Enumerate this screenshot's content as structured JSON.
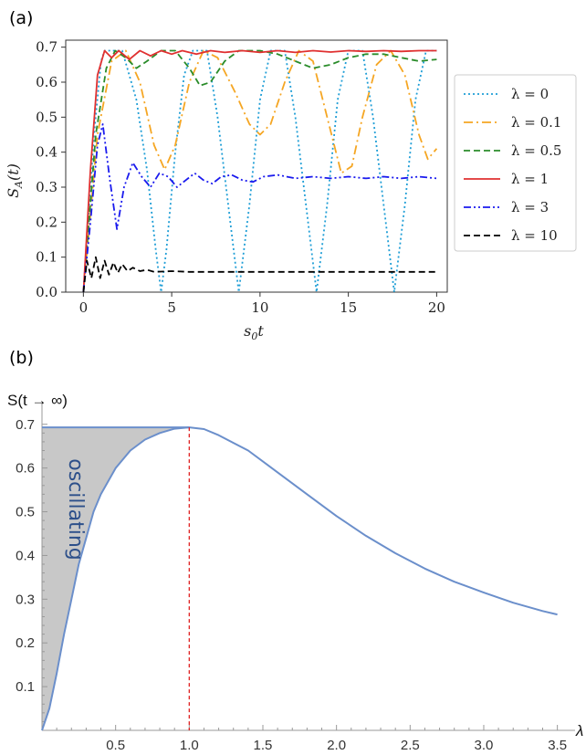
{
  "chart_data": [
    {
      "type": "line",
      "panel_label": "(a)",
      "xlabel": "s_0 t",
      "ylabel": "S_A(t)",
      "xlim": [
        -1,
        20.6
      ],
      "ylim": [
        0.0,
        0.72
      ],
      "xticks": [
        0,
        5,
        10,
        15,
        20
      ],
      "yticks": [
        0.0,
        0.1,
        0.2,
        0.3,
        0.4,
        0.5,
        0.6,
        0.7
      ],
      "legend_position": "right",
      "series": [
        {
          "name": "λ = 0",
          "color": "#1f9ed6",
          "style": "dotted",
          "points": [
            [
              0,
              0.0
            ],
            [
              0.6,
              0.45
            ],
            [
              1.0,
              0.66
            ],
            [
              1.2,
              0.69
            ],
            [
              2.2,
              0.69
            ],
            [
              3.0,
              0.55
            ],
            [
              3.6,
              0.35
            ],
            [
              4.1,
              0.12
            ],
            [
              4.4,
              0.0
            ],
            [
              4.7,
              0.12
            ],
            [
              5.2,
              0.4
            ],
            [
              5.7,
              0.62
            ],
            [
              6.2,
              0.69
            ],
            [
              7.0,
              0.69
            ],
            [
              7.6,
              0.5
            ],
            [
              8.2,
              0.25
            ],
            [
              8.8,
              0.0
            ],
            [
              9.4,
              0.25
            ],
            [
              10.0,
              0.55
            ],
            [
              10.6,
              0.69
            ],
            [
              11.4,
              0.69
            ],
            [
              12.0,
              0.5
            ],
            [
              12.6,
              0.25
            ],
            [
              13.2,
              0.0
            ],
            [
              13.8,
              0.25
            ],
            [
              14.4,
              0.55
            ],
            [
              15.0,
              0.69
            ],
            [
              15.8,
              0.69
            ],
            [
              16.4,
              0.5
            ],
            [
              17.0,
              0.25
            ],
            [
              17.6,
              0.0
            ],
            [
              18.2,
              0.25
            ],
            [
              18.8,
              0.55
            ],
            [
              19.4,
              0.69
            ],
            [
              20,
              0.69
            ]
          ]
        },
        {
          "name": "λ = 0.1",
          "color": "#f5a623",
          "style": "dashdot",
          "points": [
            [
              0,
              0.0
            ],
            [
              0.8,
              0.45
            ],
            [
              1.6,
              0.66
            ],
            [
              2.4,
              0.69
            ],
            [
              3.2,
              0.6
            ],
            [
              4.0,
              0.42
            ],
            [
              4.6,
              0.35
            ],
            [
              5.2,
              0.42
            ],
            [
              6.0,
              0.6
            ],
            [
              6.8,
              0.69
            ],
            [
              7.6,
              0.67
            ],
            [
              8.6,
              0.57
            ],
            [
              9.4,
              0.48
            ],
            [
              10.0,
              0.45
            ],
            [
              10.6,
              0.48
            ],
            [
              11.4,
              0.6
            ],
            [
              12.2,
              0.69
            ],
            [
              13.0,
              0.66
            ],
            [
              13.8,
              0.5
            ],
            [
              14.6,
              0.34
            ],
            [
              15.2,
              0.36
            ],
            [
              15.8,
              0.5
            ],
            [
              16.6,
              0.65
            ],
            [
              17.4,
              0.69
            ],
            [
              18.2,
              0.62
            ],
            [
              19.0,
              0.45
            ],
            [
              19.5,
              0.38
            ],
            [
              20,
              0.41
            ]
          ]
        },
        {
          "name": "λ = 0.5",
          "color": "#2a8c2a",
          "style": "dashed",
          "points": [
            [
              0,
              0.0
            ],
            [
              0.7,
              0.45
            ],
            [
              1.3,
              0.64
            ],
            [
              1.8,
              0.69
            ],
            [
              2.4,
              0.67
            ],
            [
              3.0,
              0.64
            ],
            [
              3.6,
              0.66
            ],
            [
              4.4,
              0.69
            ],
            [
              5.2,
              0.69
            ],
            [
              6.0,
              0.64
            ],
            [
              6.6,
              0.59
            ],
            [
              7.2,
              0.6
            ],
            [
              8.0,
              0.66
            ],
            [
              8.8,
              0.69
            ],
            [
              10,
              0.69
            ],
            [
              11.0,
              0.68
            ],
            [
              12.0,
              0.66
            ],
            [
              13.0,
              0.64
            ],
            [
              14.0,
              0.65
            ],
            [
              15.0,
              0.67
            ],
            [
              16.0,
              0.68
            ],
            [
              17.0,
              0.68
            ],
            [
              18.0,
              0.67
            ],
            [
              19.0,
              0.66
            ],
            [
              20,
              0.665
            ]
          ]
        },
        {
          "name": "λ = 1",
          "color": "#e03030",
          "style": "solid",
          "points": [
            [
              0,
              0.0
            ],
            [
              0.4,
              0.35
            ],
            [
              0.8,
              0.62
            ],
            [
              1.2,
              0.69
            ],
            [
              1.6,
              0.67
            ],
            [
              2.0,
              0.69
            ],
            [
              2.6,
              0.665
            ],
            [
              3.2,
              0.69
            ],
            [
              3.8,
              0.675
            ],
            [
              4.4,
              0.69
            ],
            [
              5.0,
              0.68
            ],
            [
              5.6,
              0.69
            ],
            [
              6.4,
              0.68
            ],
            [
              7.2,
              0.69
            ],
            [
              8.0,
              0.685
            ],
            [
              9.0,
              0.69
            ],
            [
              10.0,
              0.685
            ],
            [
              11.0,
              0.69
            ],
            [
              12.0,
              0.685
            ],
            [
              13.0,
              0.69
            ],
            [
              14.0,
              0.686
            ],
            [
              15.0,
              0.69
            ],
            [
              16.0,
              0.688
            ],
            [
              17.0,
              0.69
            ],
            [
              18.0,
              0.688
            ],
            [
              19.0,
              0.69
            ],
            [
              20,
              0.69
            ]
          ]
        },
        {
          "name": "λ = 3",
          "color": "#1a1aee",
          "style": "dashdotdot",
          "points": [
            [
              0,
              0.0
            ],
            [
              0.4,
              0.2
            ],
            [
              0.8,
              0.42
            ],
            [
              1.1,
              0.48
            ],
            [
              1.5,
              0.32
            ],
            [
              1.9,
              0.18
            ],
            [
              2.3,
              0.3
            ],
            [
              2.8,
              0.37
            ],
            [
              3.3,
              0.33
            ],
            [
              3.8,
              0.3
            ],
            [
              4.3,
              0.34
            ],
            [
              4.8,
              0.33
            ],
            [
              5.3,
              0.3
            ],
            [
              5.8,
              0.32
            ],
            [
              6.3,
              0.34
            ],
            [
              6.8,
              0.32
            ],
            [
              7.3,
              0.31
            ],
            [
              7.8,
              0.33
            ],
            [
              8.4,
              0.335
            ],
            [
              9.0,
              0.32
            ],
            [
              9.6,
              0.315
            ],
            [
              10.2,
              0.33
            ],
            [
              11.0,
              0.335
            ],
            [
              12.0,
              0.325
            ],
            [
              13.0,
              0.33
            ],
            [
              14.0,
              0.325
            ],
            [
              15.0,
              0.33
            ],
            [
              16.0,
              0.325
            ],
            [
              17.0,
              0.33
            ],
            [
              18.0,
              0.325
            ],
            [
              19.0,
              0.33
            ],
            [
              20,
              0.325
            ]
          ]
        },
        {
          "name": "λ = 10",
          "color": "#000000",
          "style": "dashed",
          "points": [
            [
              0,
              0.0
            ],
            [
              0.2,
              0.09
            ],
            [
              0.45,
              0.04
            ],
            [
              0.7,
              0.1
            ],
            [
              0.95,
              0.04
            ],
            [
              1.2,
              0.09
            ],
            [
              1.45,
              0.05
            ],
            [
              1.7,
              0.085
            ],
            [
              1.95,
              0.055
            ],
            [
              2.2,
              0.08
            ],
            [
              2.5,
              0.06
            ],
            [
              2.8,
              0.07
            ],
            [
              3.2,
              0.06
            ],
            [
              3.6,
              0.064
            ],
            [
              4.0,
              0.058
            ],
            [
              5.0,
              0.06
            ],
            [
              6.0,
              0.058
            ],
            [
              8.0,
              0.058
            ],
            [
              10.0,
              0.058
            ],
            [
              12.0,
              0.058
            ],
            [
              14.0,
              0.058
            ],
            [
              16.0,
              0.058
            ],
            [
              18.0,
              0.058
            ],
            [
              20,
              0.058
            ]
          ]
        }
      ]
    },
    {
      "type": "line",
      "panel_label": "(b)",
      "xlabel": "λ",
      "ylabel": "S(t → ∞)",
      "xlim": [
        0,
        3.62
      ],
      "ylim": [
        0,
        0.735
      ],
      "xticks": [
        0.5,
        1.0,
        1.5,
        2.0,
        2.5,
        3.0,
        3.5
      ],
      "xtick_labels": [
        "0.5",
        "1.0",
        "1.5",
        "2.0",
        "2.5",
        "3.0",
        "3.5"
      ],
      "yticks": [
        0.1,
        0.2,
        0.3,
        0.4,
        0.5,
        0.6,
        0.7
      ],
      "ytick_labels": [
        "0.1",
        "0.2",
        "0.3",
        "0.4",
        "0.5",
        "0.6",
        "0.7"
      ],
      "vline_x": 1.0,
      "vline_color": "#e02020",
      "curve_color": "#6b8fcb",
      "fill_color": "#c8c8c8",
      "annotation": "oscillating",
      "plateau": 0.693,
      "curve": [
        [
          0,
          0.0
        ],
        [
          0.05,
          0.05
        ],
        [
          0.1,
          0.13
        ],
        [
          0.15,
          0.22
        ],
        [
          0.2,
          0.3
        ],
        [
          0.25,
          0.38
        ],
        [
          0.3,
          0.44
        ],
        [
          0.35,
          0.5
        ],
        [
          0.4,
          0.54
        ],
        [
          0.5,
          0.6
        ],
        [
          0.6,
          0.64
        ],
        [
          0.7,
          0.665
        ],
        [
          0.8,
          0.68
        ],
        [
          0.9,
          0.69
        ],
        [
          1.0,
          0.693
        ],
        [
          1.1,
          0.689
        ],
        [
          1.2,
          0.675
        ],
        [
          1.4,
          0.64
        ],
        [
          1.6,
          0.59
        ],
        [
          1.8,
          0.54
        ],
        [
          2.0,
          0.49
        ],
        [
          2.2,
          0.445
        ],
        [
          2.4,
          0.405
        ],
        [
          2.6,
          0.37
        ],
        [
          2.8,
          0.34
        ],
        [
          3.0,
          0.315
        ],
        [
          3.2,
          0.292
        ],
        [
          3.4,
          0.273
        ],
        [
          3.5,
          0.265
        ]
      ]
    }
  ]
}
